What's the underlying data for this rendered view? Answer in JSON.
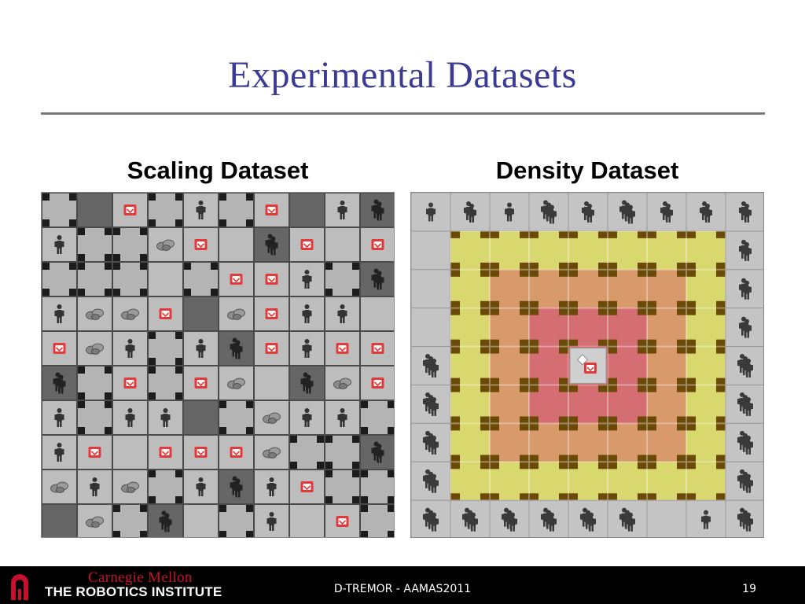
{
  "slide": {
    "title": "Experimental Datasets"
  },
  "panels": {
    "scaling": {
      "heading": "Scaling Dataset",
      "rows": [
        [
          "cross",
          "dark",
          "red",
          "cross",
          "agent-light",
          "cross",
          "red",
          "dark",
          "agent-light",
          "agent-dark"
        ],
        [
          "agent-light",
          "cross",
          "cross",
          "debris",
          "red",
          "light",
          "agent-dark",
          "red",
          "light",
          "red"
        ],
        [
          "cross",
          "cross",
          "cross",
          "light",
          "cross",
          "red",
          "red",
          "agent-light",
          "cross",
          "agent-dark"
        ],
        [
          "agent-light",
          "debris",
          "debris",
          "red",
          "dark",
          "debris",
          "red",
          "agent-light",
          "agent-light",
          "light"
        ],
        [
          "red",
          "debris",
          "agent-light",
          "cross",
          "agent-light",
          "agent-dark",
          "red",
          "agent-light",
          "red",
          "red"
        ],
        [
          "agent-dark",
          "cross",
          "red",
          "cross",
          "red",
          "debris",
          "light",
          "agent-dark",
          "debris",
          "red"
        ],
        [
          "agent-light",
          "cross",
          "agent-light",
          "agent-light",
          "dark",
          "cross",
          "debris",
          "agent-light",
          "agent-light",
          "cross"
        ],
        [
          "agent-light",
          "red",
          "light",
          "red",
          "red",
          "red",
          "debris",
          "cross",
          "cross",
          "agent-dark"
        ],
        [
          "debris",
          "agent-light",
          "debris",
          "cross",
          "agent-light",
          "agent-dark",
          "agent-light",
          "red",
          "cross",
          "cross"
        ],
        [
          "dark",
          "debris",
          "cross",
          "agent-dark",
          "light",
          "cross",
          "agent-light",
          "light",
          "red",
          "cross"
        ]
      ]
    },
    "density": {
      "heading": "Density Dataset",
      "perimeter_agent_counts": [
        1,
        2,
        1,
        3,
        2,
        3,
        2,
        2,
        2,
        2,
        2,
        2,
        3,
        3,
        3,
        3,
        3,
        1,
        0,
        3,
        3,
        3,
        3,
        3,
        3,
        3,
        3,
        3,
        3,
        0
      ],
      "center_cell": "victim",
      "zone_colors": {
        "outer": "#d9d86e",
        "middle": "#d89a6a",
        "inner": "#d46e72",
        "wall": "#6b4a08",
        "perimeter": "#c4c4c4"
      }
    }
  },
  "footer": {
    "university": "Carnegie Mellon",
    "institute": "THE ROBOTICS INSTITUTE",
    "center_text": "D-TREMOR - AAMAS2011",
    "page_number": "19"
  }
}
